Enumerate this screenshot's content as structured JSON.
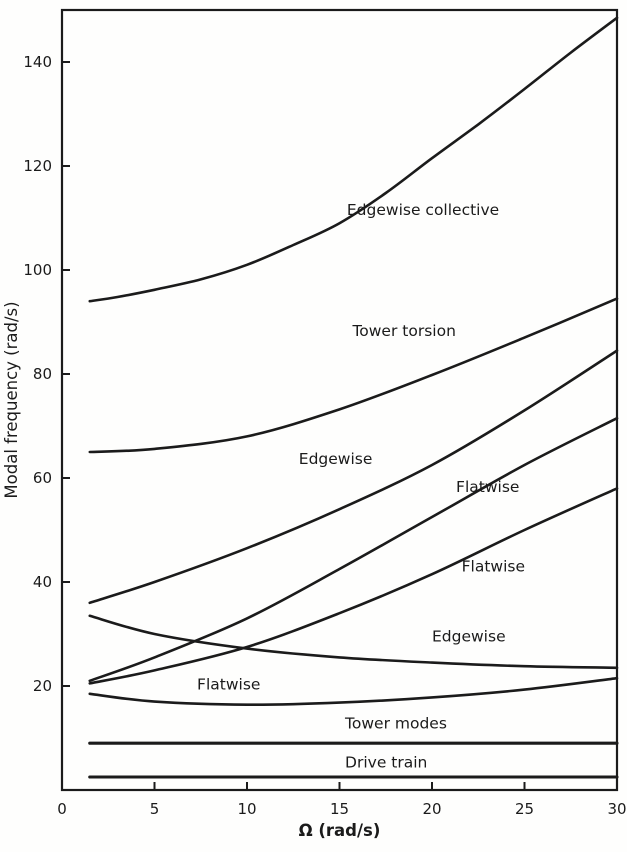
{
  "figure": {
    "ink_color": "#1b1b1b",
    "background_color": "#fefefd"
  },
  "chart_data": {
    "type": "line",
    "title": "",
    "xlabel": "Ω (rad/s)",
    "ylabel": "Modal frequency (rad/s)",
    "xlim": [
      0,
      30
    ],
    "ylim": [
      0,
      150
    ],
    "xticks": [
      0,
      5,
      10,
      15,
      20,
      25,
      30
    ],
    "yticks": [
      20,
      40,
      60,
      80,
      100,
      120,
      140
    ],
    "grid": false,
    "legend": "none (inline annotations)",
    "line_color": "#1b1b1b",
    "series": [
      {
        "name": "Edgewise collective",
        "x": [
          1.5,
          3,
          5,
          7.5,
          10,
          12.5,
          15,
          17.5,
          20,
          22.5,
          25,
          27.5,
          30
        ],
        "y": [
          94,
          94.8,
          96.2,
          98.2,
          101,
          104.8,
          109,
          114.8,
          121.5,
          128,
          134.8,
          141.8,
          148.5
        ]
      },
      {
        "name": "Tower torsion",
        "x": [
          1.5,
          5,
          10,
          15,
          20,
          25,
          30
        ],
        "y": [
          65,
          65.6,
          68,
          73.2,
          79.8,
          87,
          94.5
        ]
      },
      {
        "name": "Edgewise",
        "x": [
          1.5,
          5,
          10,
          15,
          20,
          25,
          30
        ],
        "y": [
          36,
          40,
          46.5,
          54,
          62.5,
          73,
          84.5
        ]
      },
      {
        "name": "Flatwise",
        "x": [
          1.5,
          5,
          10,
          15,
          20,
          25,
          30
        ],
        "y": [
          21,
          25.5,
          33,
          42.5,
          52.5,
          62.5,
          71.5
        ]
      },
      {
        "name": "Flatwise",
        "x": [
          1.5,
          5,
          10,
          15,
          20,
          25,
          30
        ],
        "y": [
          20.5,
          23,
          27.5,
          34,
          41.5,
          50,
          58
        ]
      },
      {
        "name": "Edgewise",
        "x": [
          1.5,
          5,
          10,
          15,
          20,
          25,
          30
        ],
        "y": [
          33.5,
          30,
          27.2,
          25.5,
          24.5,
          23.8,
          23.5
        ]
      },
      {
        "name": "Flatwise",
        "x": [
          1.5,
          5,
          10,
          15,
          20,
          25,
          30
        ],
        "y": [
          18.5,
          17,
          16.4,
          16.8,
          17.8,
          19.3,
          21.5
        ]
      },
      {
        "name": "Tower modes",
        "x": [
          1.5,
          30
        ],
        "y": [
          9,
          9
        ]
      },
      {
        "name": "Drive train",
        "x": [
          1.5,
          30
        ],
        "y": [
          2.5,
          2.5
        ]
      }
    ],
    "annotations": [
      {
        "text": "Edgewise collective",
        "x": 15.4,
        "y": 111.5
      },
      {
        "text": "Tower torsion",
        "x": 15.7,
        "y": 88.3
      },
      {
        "text": "Edgewise",
        "x": 12.8,
        "y": 63.7
      },
      {
        "text": "Flatwise",
        "x": 21.3,
        "y": 58.3
      },
      {
        "text": "Flatwise",
        "x": 21.6,
        "y": 43.0
      },
      {
        "text": "Edgewise",
        "x": 20.0,
        "y": 29.5
      },
      {
        "text": "Flatwise",
        "x": 7.3,
        "y": 20.3
      },
      {
        "text": "Tower modes",
        "x": 15.3,
        "y": 12.8
      },
      {
        "text": "Drive train",
        "x": 15.3,
        "y": 5.3
      }
    ]
  }
}
